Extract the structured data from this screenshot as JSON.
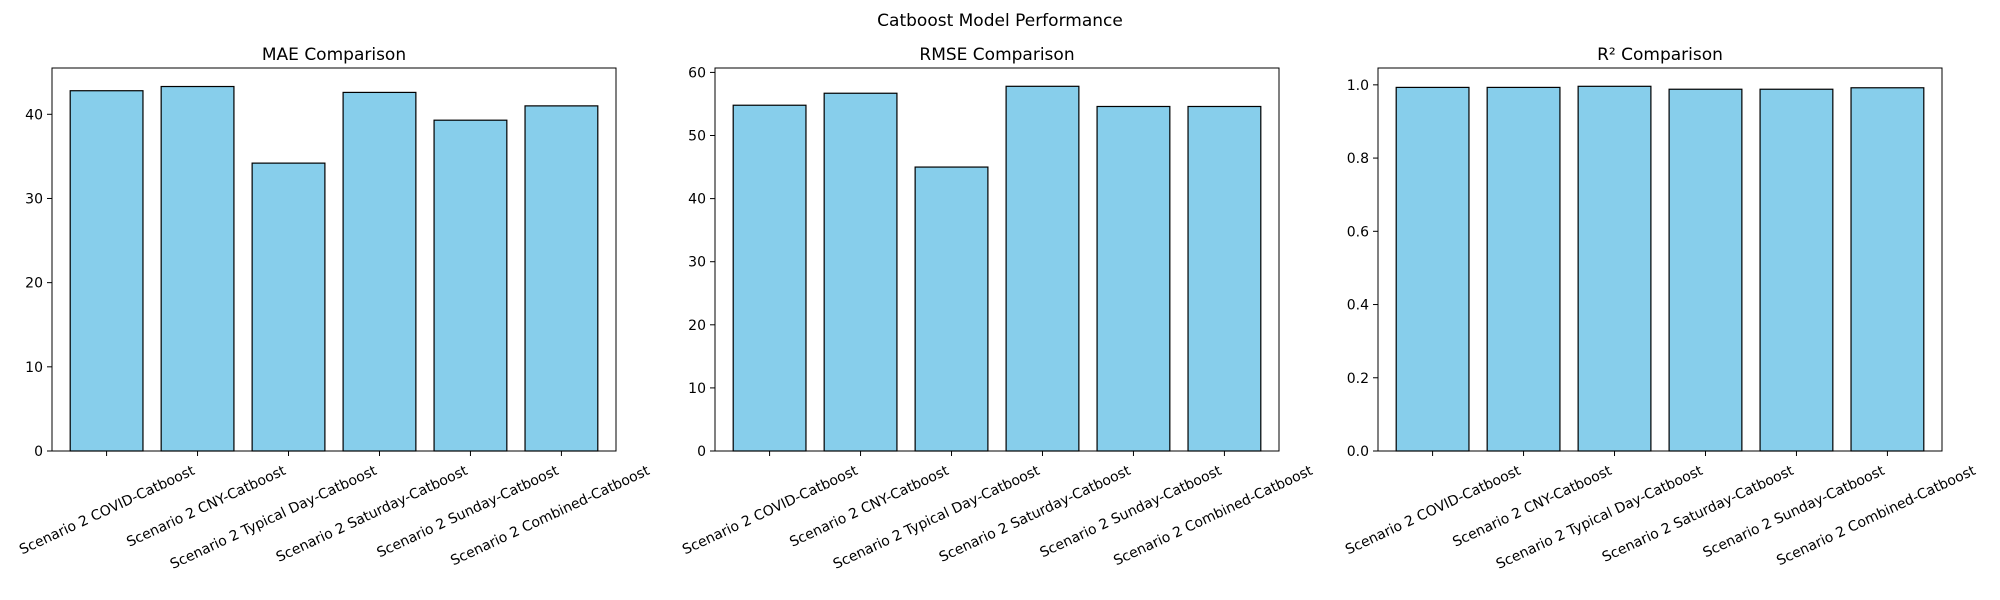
{
  "figure": {
    "suptitle": "Catboost Model Performance"
  },
  "colors": {
    "bar_fill": "#87CEEB",
    "bar_edge": "#000000",
    "axis": "#000000",
    "text": "#000000"
  },
  "chart_data": [
    {
      "type": "bar",
      "title": "MAE Comparison",
      "xlabel": "",
      "ylabel": "",
      "categories": [
        "Scenario 2 COVID-Catboost",
        "Scenario 2 CNY-Catboost",
        "Scenario 2 Typical Day-Catboost",
        "Scenario 2 Saturday-Catboost",
        "Scenario 2 Sunday-Catboost",
        "Scenario 2 Combined-Catboost"
      ],
      "values": [
        42.8,
        43.3,
        34.2,
        42.6,
        39.3,
        41.0
      ],
      "ylim": [
        0,
        45.5
      ],
      "yticks": [
        0,
        10,
        20,
        30,
        40
      ],
      "ytick_labels": [
        "0",
        "10",
        "20",
        "30",
        "40"
      ],
      "grid": false,
      "legend": "none"
    },
    {
      "type": "bar",
      "title": "RMSE Comparison",
      "xlabel": "",
      "ylabel": "",
      "categories": [
        "Scenario 2 COVID-Catboost",
        "Scenario 2 CNY-Catboost",
        "Scenario 2 Typical Day-Catboost",
        "Scenario 2 Saturday-Catboost",
        "Scenario 2 Sunday-Catboost",
        "Scenario 2 Combined-Catboost"
      ],
      "values": [
        54.8,
        56.7,
        45.0,
        57.8,
        54.6,
        54.6
      ],
      "ylim": [
        0,
        60.7
      ],
      "yticks": [
        0,
        10,
        20,
        30,
        40,
        50,
        60
      ],
      "ytick_labels": [
        "0",
        "10",
        "20",
        "30",
        "40",
        "50",
        "60"
      ],
      "grid": false,
      "legend": "none"
    },
    {
      "type": "bar",
      "title": "R² Comparison",
      "xlabel": "",
      "ylabel": "",
      "categories": [
        "Scenario 2 COVID-Catboost",
        "Scenario 2 CNY-Catboost",
        "Scenario 2 Typical Day-Catboost",
        "Scenario 2 Saturday-Catboost",
        "Scenario 2 Sunday-Catboost",
        "Scenario 2 Combined-Catboost"
      ],
      "values": [
        0.993,
        0.993,
        0.996,
        0.988,
        0.988,
        0.992
      ],
      "ylim": [
        0,
        1.046
      ],
      "yticks": [
        0.0,
        0.2,
        0.4,
        0.6,
        0.8,
        1.0
      ],
      "ytick_labels": [
        "0.0",
        "0.2",
        "0.4",
        "0.6",
        "0.8",
        "1.0"
      ],
      "grid": false,
      "legend": "none"
    }
  ]
}
